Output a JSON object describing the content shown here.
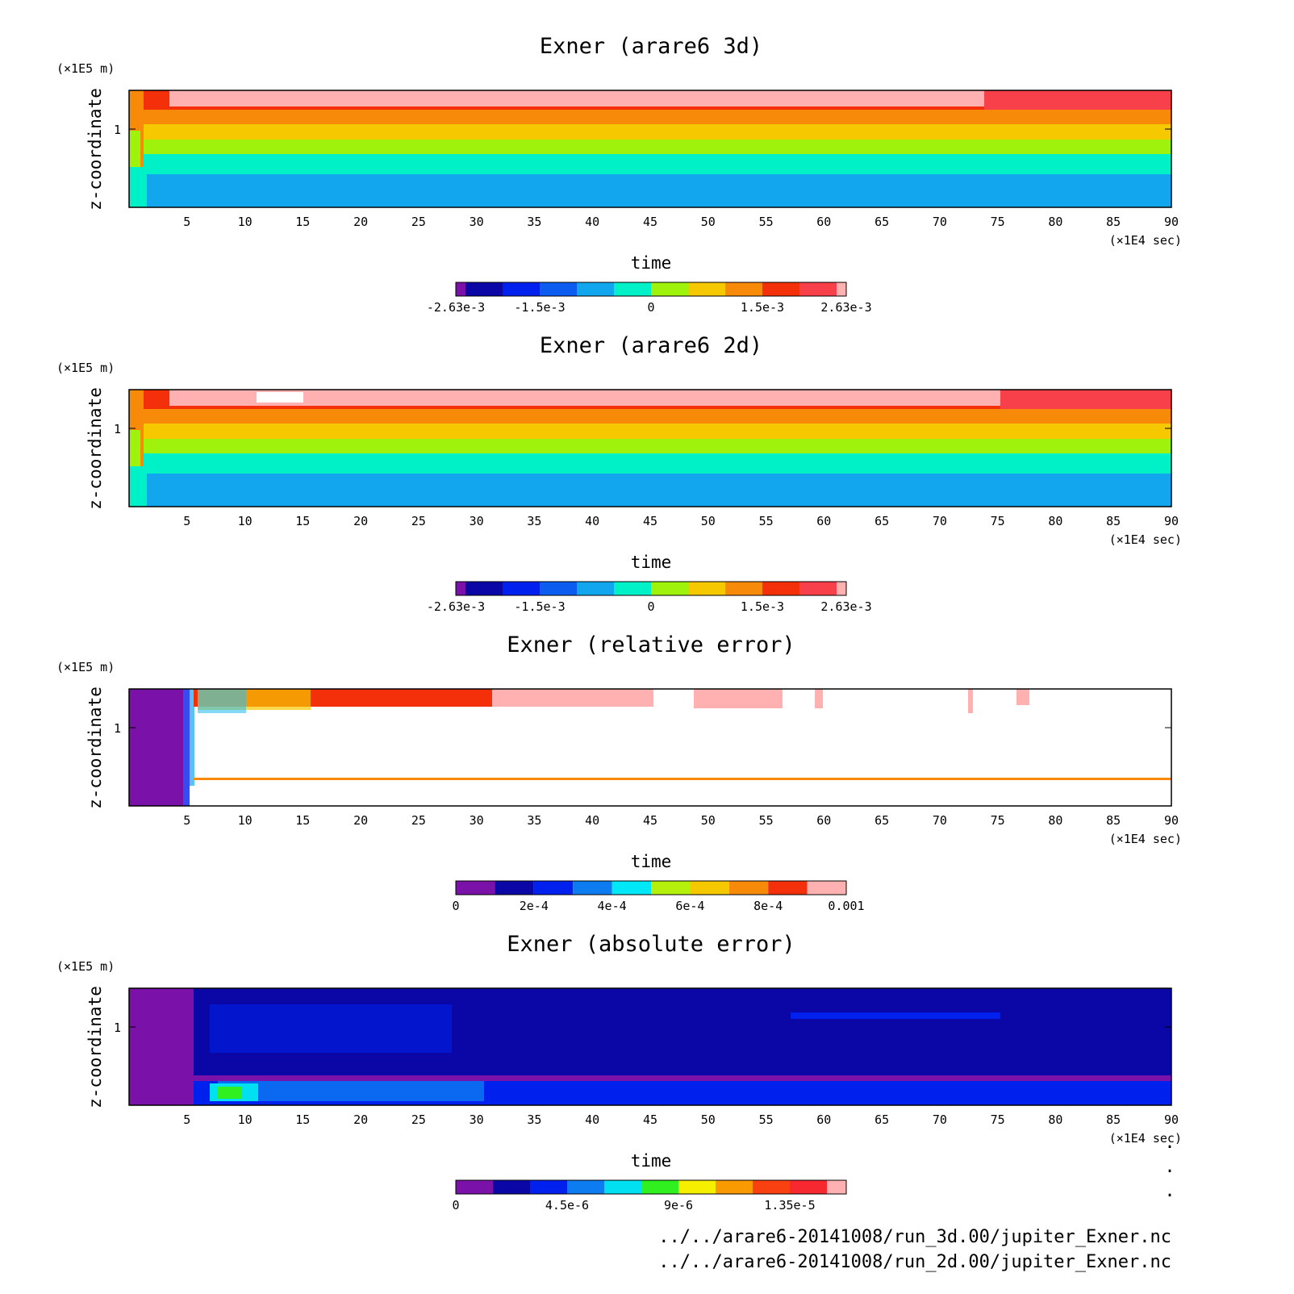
{
  "chart_data": [
    {
      "type": "heatmap",
      "title": "Exner (arare6 3d)",
      "xlabel": "time",
      "x_unit": "(×1E4 sec)",
      "ylabel": "z-coordinate",
      "y_unit": "(×1E5 m)",
      "xlim": [
        0,
        90
      ],
      "ylim": [
        0,
        1.5
      ],
      "x_ticks": [
        "5",
        "10",
        "15",
        "20",
        "25",
        "30",
        "35",
        "40",
        "45",
        "50",
        "55",
        "60",
        "65",
        "70",
        "75",
        "80",
        "85",
        "90"
      ],
      "y_ticks": [
        "1"
      ],
      "colorbar": {
        "colors": [
          "#7a12aa",
          "#0a07a6",
          "#0020ee",
          "#0c5cf0",
          "#12a6ee",
          "#00f0c8",
          "#9ef20c",
          "#f6c800",
          "#f88a0a",
          "#f4300a",
          "#f8404a",
          "#ffb0b0"
        ],
        "labels": [
          "-2.63e-3",
          "-1.5e-3",
          "0",
          "1.5e-3",
          "2.63e-3"
        ]
      },
      "bands": [
        {
          "z_range": [
            0.0,
            0.28
          ],
          "level": "-7.5e-4 – 0",
          "color": "#12a6ee"
        },
        {
          "z_range": [
            0.28,
            0.52
          ],
          "level": "0 – 3.75e-4",
          "color": "#00f0c8"
        },
        {
          "z_range": [
            0.52,
            0.72
          ],
          "level": "3.75e-4 – 7.5e-4",
          "color": "#9ef20c"
        },
        {
          "z_range": [
            0.72,
            0.9
          ],
          "level": "7.5e-4 – 1.13e-3",
          "color": "#f6c800"
        },
        {
          "z_range": [
            0.9,
            1.08
          ],
          "level": "1.13e-3 – 1.5e-3",
          "color": "#f88a0a"
        },
        {
          "z_range": [
            1.08,
            1.28
          ],
          "level": "1.5e-3 – 1.88e-3",
          "color": "#f4300a"
        },
        {
          "z_range": [
            1.28,
            1.5
          ],
          "level": "2.25e-3 – 2.63e-3",
          "color": "#ffb0b0",
          "time_range": [
            4,
            74
          ]
        },
        {
          "z_range": [
            1.28,
            1.5
          ],
          "level": "1.88e-3 – 2.25e-3",
          "color": "#f8404a",
          "time_range": [
            74,
            90
          ]
        }
      ]
    },
    {
      "type": "heatmap",
      "title": "Exner (arare6 2d)",
      "xlabel": "time",
      "x_unit": "(×1E4 sec)",
      "ylabel": "z-coordinate",
      "y_unit": "(×1E5 m)",
      "xlim": [
        0,
        90
      ],
      "ylim": [
        0,
        1.5
      ],
      "x_ticks": [
        "5",
        "10",
        "15",
        "20",
        "25",
        "30",
        "35",
        "40",
        "45",
        "50",
        "55",
        "60",
        "65",
        "70",
        "75",
        "80",
        "85",
        "90"
      ],
      "y_ticks": [
        "1"
      ],
      "colorbar": {
        "colors": [
          "#7a12aa",
          "#0a07a6",
          "#0020ee",
          "#0c5cf0",
          "#12a6ee",
          "#00f0c8",
          "#9ef20c",
          "#f6c800",
          "#f88a0a",
          "#f4300a",
          "#f8404a",
          "#ffb0b0"
        ],
        "labels": [
          "-2.63e-3",
          "-1.5e-3",
          "0",
          "1.5e-3",
          "2.63e-3"
        ]
      },
      "bands": [
        {
          "z_range": [
            0.0,
            0.28
          ],
          "level": "-7.5e-4 – 0",
          "color": "#12a6ee"
        },
        {
          "z_range": [
            0.28,
            0.52
          ],
          "level": "0 – 3.75e-4",
          "color": "#00f0c8"
        },
        {
          "z_range": [
            0.52,
            0.72
          ],
          "level": "3.75e-4 – 7.5e-4",
          "color": "#9ef20c"
        },
        {
          "z_range": [
            0.72,
            0.9
          ],
          "level": "7.5e-4 – 1.13e-3",
          "color": "#f6c800"
        },
        {
          "z_range": [
            0.9,
            1.08
          ],
          "level": "1.13e-3 – 1.5e-3",
          "color": "#f88a0a"
        },
        {
          "z_range": [
            1.08,
            1.28
          ],
          "level": "1.5e-3 – 1.88e-3",
          "color": "#f4300a"
        },
        {
          "z_range": [
            1.28,
            1.5
          ],
          "level": "2.25e-3 – 2.63e-3",
          "color": "#ffb0b0",
          "time_range": [
            4,
            75.5
          ]
        },
        {
          "z_range": [
            1.28,
            1.5
          ],
          "level": "1.88e-3 – 2.25e-3",
          "color": "#f8404a",
          "time_range": [
            75.5,
            90
          ]
        },
        {
          "z_range": [
            1.36,
            1.5
          ],
          "level": "> 2.63e-3",
          "color": "#ffffff",
          "time_range": [
            11,
            15
          ]
        }
      ]
    },
    {
      "type": "heatmap",
      "title": "Exner (relative error)",
      "xlabel": "time",
      "x_unit": "(×1E4 sec)",
      "ylabel": "z-coordinate",
      "y_unit": "(×1E5 m)",
      "xlim": [
        0,
        90
      ],
      "ylim": [
        0,
        1.5
      ],
      "x_ticks": [
        "5",
        "10",
        "15",
        "20",
        "25",
        "30",
        "35",
        "40",
        "45",
        "50",
        "55",
        "60",
        "65",
        "70",
        "75",
        "80",
        "85",
        "90"
      ],
      "y_ticks": [
        "1"
      ],
      "colorbar": {
        "colors": [
          "#7a12aa",
          "#0a07a6",
          "#0020ee",
          "#0c7cf0",
          "#00e8f8",
          "#b4f00c",
          "#f6c800",
          "#f88a0a",
          "#f4300a",
          "#ff0808",
          "#ffb0b0"
        ],
        "labels": [
          "0",
          "2e-4",
          "4e-4",
          "6e-4",
          "8e-4",
          "0.001"
        ]
      },
      "regions": [
        {
          "time_range": [
            0,
            4.7
          ],
          "z_range": [
            0,
            1.5
          ],
          "level": "0 – 1e-4",
          "color": "#7a12aa"
        },
        {
          "time_range": [
            4.7,
            90
          ],
          "z_range": [
            0,
            1.5
          ],
          "level": "> 0.001",
          "color": "#ffffff"
        },
        {
          "time_range": [
            5,
            45
          ],
          "z_range": [
            1.2,
            1.5
          ],
          "level": "8e-4 – 0.001",
          "color": "#f4300a"
        },
        {
          "time_range": [
            5,
            79
          ],
          "z_range": [
            1.2,
            1.5
          ],
          "level": "0.001",
          "color": "#ffb0b0"
        },
        {
          "time_range": [
            5,
            90
          ],
          "z_range": [
            0.32,
            0.35
          ],
          "level": "6e-4 – 8e-4",
          "color": "#f88a0a"
        }
      ]
    },
    {
      "type": "heatmap",
      "title": "Exner (absolute error)",
      "xlabel": "time",
      "x_unit": "(×1E4 sec)",
      "ylabel": "z-coordinate",
      "y_unit": "(×1E5 m)",
      "xlim": [
        0,
        90
      ],
      "ylim": [
        0,
        1.5
      ],
      "x_ticks": [
        "5",
        "10",
        "15",
        "20",
        "25",
        "30",
        "35",
        "40",
        "45",
        "50",
        "55",
        "60",
        "65",
        "70",
        "75",
        "80",
        "85",
        "90"
      ],
      "y_ticks": [
        "1"
      ],
      "colorbar": {
        "colors": [
          "#7a12aa",
          "#0a07a6",
          "#0020ee",
          "#0c7cf0",
          "#00e0f0",
          "#30f020",
          "#f6f000",
          "#f89a00",
          "#f84010",
          "#f82830",
          "#ffb0b0"
        ],
        "labels": [
          "0",
          "4.5e-6",
          "9e-6",
          "1.35e-5"
        ]
      },
      "regions": [
        {
          "time_range": [
            0,
            5.6
          ],
          "z_range": [
            0,
            1.5
          ],
          "level": "0 – 1.5e-6",
          "color": "#7a12aa"
        },
        {
          "time_range": [
            5.6,
            90
          ],
          "z_range": [
            0,
            1.5
          ],
          "level": "1.5e-6 – 3e-6",
          "color": "#0a07a6"
        },
        {
          "time_range": [
            5.6,
            90
          ],
          "z_range": [
            0,
            0.3
          ],
          "level": "3e-6 – 4.5e-6",
          "color": "#0020ee"
        },
        {
          "time_range": [
            5.6,
            90
          ],
          "z_range": [
            0.3,
            0.36
          ],
          "level": "0 – 1.5e-6",
          "color": "#7a12aa"
        },
        {
          "time_range": [
            5.6,
            30
          ],
          "z_range": [
            0.05,
            0.25
          ],
          "level": "4.5e-6 – 6e-6",
          "color": "#0c7cf0"
        },
        {
          "time_range": [
            7,
            12
          ],
          "z_range": [
            0.02,
            0.22
          ],
          "level": "6e-6 – 9e-6",
          "color": "#00e0f0"
        }
      ]
    }
  ],
  "footer": {
    "path_3d": "../../arare6-20141008/run_3d.00/jupiter_Exner.nc",
    "path_2d": "../../arare6-20141008/run_2d.00/jupiter_Exner.nc",
    "marks": [
      ".",
      ".",
      "."
    ]
  }
}
